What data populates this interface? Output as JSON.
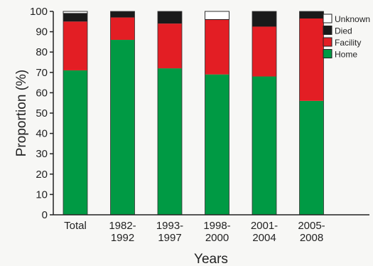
{
  "chart_data": {
    "type": "bar",
    "stacked": true,
    "categories": [
      [
        "Total"
      ],
      [
        "1982-",
        "1992"
      ],
      [
        "1993-",
        "1997"
      ],
      [
        "1998-",
        "2000"
      ],
      [
        "2001-",
        "2004"
      ],
      [
        "2005-",
        "2008"
      ]
    ],
    "series": [
      {
        "name": "Home",
        "color": "#009a44",
        "values": [
          71,
          86,
          72,
          69,
          68,
          56
        ]
      },
      {
        "name": "Facility",
        "color": "#e31e24",
        "values": [
          24,
          11,
          22,
          27,
          24.5,
          40.5
        ]
      },
      {
        "name": "Died",
        "color": "#1a1a1a",
        "values": [
          4,
          3,
          6,
          0,
          7.5,
          3.5
        ]
      },
      {
        "name": "Unknown",
        "color": "#ffffff",
        "values": [
          1,
          0,
          0,
          4,
          0,
          0
        ]
      }
    ],
    "legend_order": [
      "Unknown",
      "Died",
      "Facility",
      "Home"
    ],
    "legend_labels": [
      "Unknown",
      "Died",
      "Facility",
      "Home"
    ],
    "xlabel": "Years",
    "ylabel": "Proportion (%)",
    "ylim": [
      0,
      100
    ],
    "yticks": [
      0,
      10,
      20,
      30,
      40,
      50,
      60,
      70,
      80,
      90,
      100
    ],
    "grid": false,
    "legend_position": "top-right"
  }
}
